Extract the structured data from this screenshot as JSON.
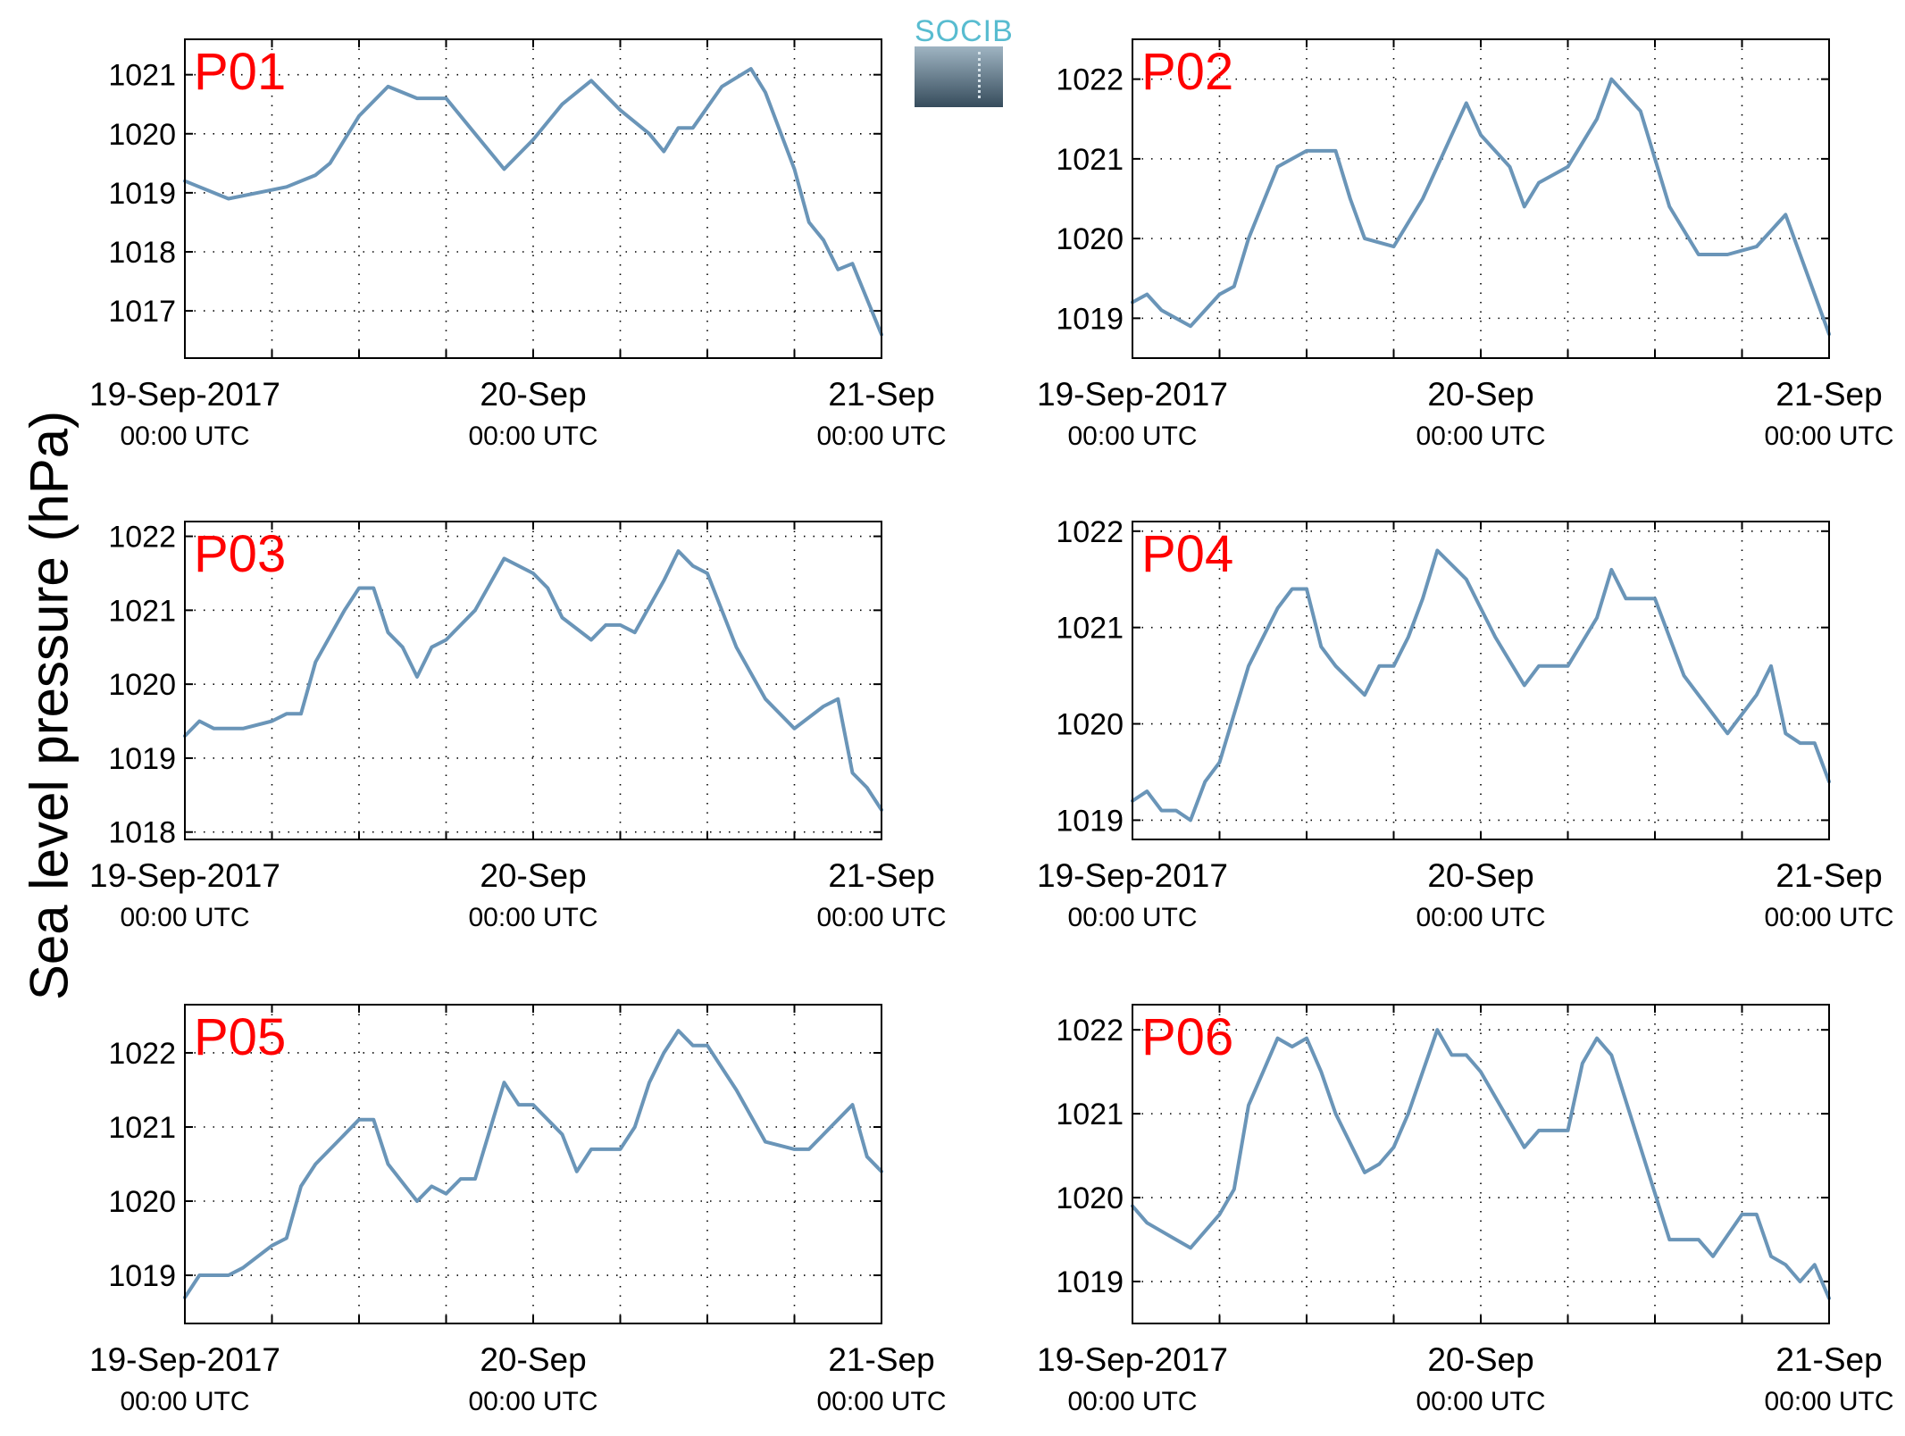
{
  "figure": {
    "ylabel": "Sea level pressure (hPa)",
    "logo": {
      "text": "SOCIB",
      "text_color": "#58bcd0"
    },
    "line_color": "#6a95b8",
    "panel_label_color": "#ff0000"
  },
  "chart_data": [
    {
      "type": "line",
      "name": "P01",
      "xlim": [
        "19-Sep-2017 00:00",
        "21-Sep-2017 00:00"
      ],
      "ylim": [
        1016.2,
        1021.6
      ],
      "yticks": [
        1017,
        1018,
        1019,
        1020,
        1021
      ],
      "xtick_labels": [
        [
          "19-Sep-2017",
          "00:00 UTC"
        ],
        [
          "20-Sep",
          "00:00 UTC"
        ],
        [
          "21-Sep",
          "00:00 UTC"
        ]
      ],
      "grid": true,
      "x_hours": [
        0,
        1,
        3,
        5,
        7,
        9,
        10,
        12,
        14,
        16,
        18,
        20,
        22,
        24,
        26,
        28,
        30,
        32,
        33,
        34,
        35,
        37,
        39,
        40,
        42,
        43,
        44,
        45,
        46,
        48
      ],
      "values": [
        1019.2,
        1019.1,
        1018.9,
        1019.0,
        1019.1,
        1019.3,
        1019.5,
        1020.3,
        1020.8,
        1020.6,
        1020.6,
        1020.0,
        1019.4,
        1019.9,
        1020.5,
        1020.9,
        1020.4,
        1020.0,
        1019.7,
        1020.1,
        1020.1,
        1020.8,
        1021.1,
        1020.7,
        1019.4,
        1018.5,
        1018.2,
        1017.7,
        1017.8,
        1016.6
      ]
    },
    {
      "type": "line",
      "name": "P02",
      "xlim": [
        "19-Sep-2017 00:00",
        "21-Sep-2017 00:00"
      ],
      "ylim": [
        1018.5,
        1022.5
      ],
      "yticks": [
        1019,
        1020,
        1021,
        1022
      ],
      "xtick_labels": [
        [
          "19-Sep-2017",
          "00:00 UTC"
        ],
        [
          "20-Sep",
          "00:00 UTC"
        ],
        [
          "21-Sep",
          "00:00 UTC"
        ]
      ],
      "grid": true,
      "x_hours": [
        0,
        1,
        2,
        3,
        4,
        6,
        7,
        8,
        10,
        12,
        14,
        15,
        16,
        18,
        20,
        22,
        23,
        24,
        26,
        27,
        28,
        30,
        32,
        33,
        35,
        37,
        39,
        41,
        43,
        45,
        47,
        48
      ],
      "values": [
        1019.2,
        1019.3,
        1019.1,
        1019.0,
        1018.9,
        1019.3,
        1019.4,
        1020.0,
        1020.9,
        1021.1,
        1021.1,
        1020.5,
        1020.0,
        1019.9,
        1020.5,
        1021.3,
        1021.7,
        1021.3,
        1020.9,
        1020.4,
        1020.7,
        1020.9,
        1021.5,
        1022.0,
        1021.6,
        1020.4,
        1019.8,
        1019.8,
        1019.9,
        1020.3,
        1019.3,
        1018.8
      ]
    },
    {
      "type": "line",
      "name": "P03",
      "xlim": [
        "19-Sep-2017 00:00",
        "21-Sep-2017 00:00"
      ],
      "ylim": [
        1017.9,
        1022.2
      ],
      "yticks": [
        1018,
        1019,
        1020,
        1021,
        1022
      ],
      "xtick_labels": [
        [
          "19-Sep-2017",
          "00:00 UTC"
        ],
        [
          "20-Sep",
          "00:00 UTC"
        ],
        [
          "21-Sep",
          "00:00 UTC"
        ]
      ],
      "grid": true,
      "x_hours": [
        0,
        1,
        2,
        4,
        6,
        7,
        8,
        9,
        11,
        12,
        13,
        14,
        15,
        16,
        17,
        18,
        20,
        22,
        24,
        25,
        26,
        28,
        29,
        30,
        31,
        33,
        34,
        35,
        36,
        38,
        40,
        42,
        44,
        45,
        46,
        47,
        48
      ],
      "values": [
        1019.3,
        1019.5,
        1019.4,
        1019.4,
        1019.5,
        1019.6,
        1019.6,
        1020.3,
        1021.0,
        1021.3,
        1021.3,
        1020.7,
        1020.5,
        1020.1,
        1020.5,
        1020.6,
        1021.0,
        1021.7,
        1021.5,
        1021.3,
        1020.9,
        1020.6,
        1020.8,
        1020.8,
        1020.7,
        1021.4,
        1021.8,
        1021.6,
        1021.5,
        1020.5,
        1019.8,
        1019.4,
        1019.7,
        1019.8,
        1018.8,
        1018.6,
        1018.3
      ]
    },
    {
      "type": "line",
      "name": "P04",
      "xlim": [
        "19-Sep-2017 00:00",
        "21-Sep-2017 00:00"
      ],
      "ylim": [
        1018.8,
        1022.1
      ],
      "yticks": [
        1019,
        1020,
        1021,
        1022
      ],
      "xtick_labels": [
        [
          "19-Sep-2017",
          "00:00 UTC"
        ],
        [
          "20-Sep",
          "00:00 UTC"
        ],
        [
          "21-Sep",
          "00:00 UTC"
        ]
      ],
      "grid": true,
      "x_hours": [
        0,
        1,
        2,
        3,
        4,
        5,
        6,
        8,
        10,
        11,
        12,
        13,
        14,
        16,
        17,
        18,
        19,
        20,
        21,
        23,
        24,
        25,
        27,
        28,
        29,
        30,
        32,
        33,
        34,
        36,
        38,
        41,
        42,
        43,
        44,
        45,
        46,
        47,
        48
      ],
      "values": [
        1019.2,
        1019.3,
        1019.1,
        1019.1,
        1019.0,
        1019.4,
        1019.6,
        1020.6,
        1021.2,
        1021.4,
        1021.4,
        1020.8,
        1020.6,
        1020.3,
        1020.6,
        1020.6,
        1020.9,
        1021.3,
        1021.8,
        1021.5,
        1021.2,
        1020.9,
        1020.4,
        1020.6,
        1020.6,
        1020.6,
        1021.1,
        1021.6,
        1021.3,
        1021.3,
        1020.5,
        1019.9,
        1020.1,
        1020.3,
        1020.6,
        1019.9,
        1019.8,
        1019.8,
        1019.4
      ]
    },
    {
      "type": "line",
      "name": "P05",
      "xlim": [
        "19-Sep-2017 00:00",
        "21-Sep-2017 00:00"
      ],
      "ylim": [
        1018.35,
        1022.65
      ],
      "yticks": [
        1019,
        1020,
        1021,
        1022
      ],
      "xtick_labels": [
        [
          "19-Sep-2017",
          "00:00 UTC"
        ],
        [
          "20-Sep",
          "00:00 UTC"
        ],
        [
          "21-Sep",
          "00:00 UTC"
        ]
      ],
      "grid": true,
      "x_hours": [
        0,
        1,
        3,
        4,
        6,
        7,
        8,
        9,
        11,
        12,
        13,
        14,
        16,
        17,
        18,
        19,
        20,
        22,
        23,
        24,
        26,
        27,
        28,
        30,
        31,
        32,
        33,
        34,
        35,
        36,
        38,
        40,
        42,
        43,
        45,
        46,
        47,
        48
      ],
      "values": [
        1018.7,
        1019.0,
        1019.0,
        1019.1,
        1019.4,
        1019.5,
        1020.2,
        1020.5,
        1020.9,
        1021.1,
        1021.1,
        1020.5,
        1020.0,
        1020.2,
        1020.1,
        1020.3,
        1020.3,
        1021.6,
        1021.3,
        1021.3,
        1020.9,
        1020.4,
        1020.7,
        1020.7,
        1021.0,
        1021.6,
        1022.0,
        1022.3,
        1022.1,
        1022.1,
        1021.5,
        1020.8,
        1020.7,
        1020.7,
        1021.1,
        1021.3,
        1020.6,
        1020.4
      ]
    },
    {
      "type": "line",
      "name": "P06",
      "xlim": [
        "19-Sep-2017 00:00",
        "21-Sep-2017 00:00"
      ],
      "ylim": [
        1018.5,
        1022.3
      ],
      "yticks": [
        1019,
        1020,
        1021,
        1022
      ],
      "xtick_labels": [
        [
          "19-Sep-2017",
          "00:00 UTC"
        ],
        [
          "20-Sep",
          "00:00 UTC"
        ],
        [
          "21-Sep",
          "00:00 UTC"
        ]
      ],
      "grid": true,
      "x_hours": [
        0,
        1,
        2,
        3,
        4,
        6,
        7,
        8,
        9,
        10,
        11,
        12,
        13,
        14,
        16,
        17,
        18,
        19,
        20,
        21,
        22,
        23,
        24,
        26,
        27,
        28,
        30,
        31,
        32,
        33,
        35,
        37,
        39,
        40,
        42,
        43,
        44,
        45,
        46,
        47,
        48
      ],
      "values": [
        1019.9,
        1019.7,
        1019.6,
        1019.5,
        1019.4,
        1019.8,
        1020.1,
        1021.1,
        1021.5,
        1021.9,
        1021.8,
        1021.9,
        1021.5,
        1021.0,
        1020.3,
        1020.4,
        1020.6,
        1021.0,
        1021.5,
        1022.0,
        1021.7,
        1021.7,
        1021.5,
        1020.9,
        1020.6,
        1020.8,
        1020.8,
        1021.6,
        1021.9,
        1021.7,
        1020.6,
        1019.5,
        1019.5,
        1019.3,
        1019.8,
        1019.8,
        1019.3,
        1019.2,
        1019.0,
        1019.2,
        1018.8
      ]
    }
  ]
}
